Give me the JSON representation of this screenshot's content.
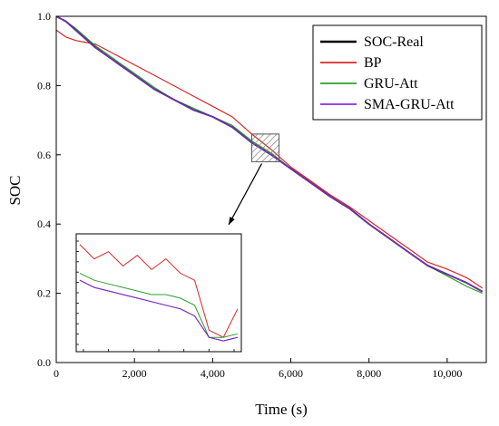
{
  "chart_data": {
    "type": "line",
    "title": "",
    "xlabel": "Time (s)",
    "ylabel": "SOC",
    "xlim": [
      0,
      11000
    ],
    "ylim": [
      0.0,
      1.0
    ],
    "x_ticks": [
      0,
      2000,
      4000,
      6000,
      8000,
      10000
    ],
    "x_tick_labels": [
      "0",
      "2,000",
      "4,000",
      "6,000",
      "8,000",
      "10,000"
    ],
    "y_ticks": [
      0.0,
      0.2,
      0.4,
      0.6,
      0.8,
      1.0
    ],
    "y_tick_labels": [
      "0.0",
      "0.2",
      "0.4",
      "0.6",
      "0.8",
      "1.0"
    ],
    "grid": false,
    "legend_position": "top-right",
    "x": [
      0,
      250,
      500,
      1000,
      1500,
      2000,
      2500,
      3000,
      3500,
      4000,
      4500,
      5000,
      5500,
      6000,
      6500,
      7000,
      7500,
      8000,
      8500,
      9000,
      9500,
      10000,
      10500,
      10900
    ],
    "series": [
      {
        "name": "SOC-Real",
        "color": "#000000",
        "values": [
          1.0,
          0.985,
          0.96,
          0.91,
          0.87,
          0.83,
          0.79,
          0.76,
          0.73,
          0.71,
          0.68,
          0.635,
          0.6,
          0.56,
          0.52,
          0.48,
          0.445,
          0.4,
          0.36,
          0.32,
          0.28,
          0.255,
          0.23,
          0.205
        ]
      },
      {
        "name": "BP",
        "color": "#d62728",
        "values": [
          0.96,
          0.94,
          0.93,
          0.92,
          0.89,
          0.86,
          0.83,
          0.8,
          0.77,
          0.74,
          0.71,
          0.66,
          0.615,
          0.565,
          0.525,
          0.485,
          0.45,
          0.41,
          0.37,
          0.33,
          0.29,
          0.27,
          0.245,
          0.215
        ]
      },
      {
        "name": "GRU-Att",
        "color": "#2ca02c",
        "values": [
          1.0,
          0.985,
          0.965,
          0.915,
          0.875,
          0.835,
          0.795,
          0.76,
          0.735,
          0.71,
          0.685,
          0.64,
          0.605,
          0.56,
          0.52,
          0.48,
          0.445,
          0.4,
          0.36,
          0.32,
          0.28,
          0.25,
          0.22,
          0.2
        ]
      },
      {
        "name": "SMA-GRU-Att",
        "color": "#8a2be2",
        "values": [
          1.0,
          0.985,
          0.96,
          0.91,
          0.87,
          0.83,
          0.79,
          0.76,
          0.73,
          0.71,
          0.68,
          0.635,
          0.6,
          0.56,
          0.52,
          0.48,
          0.445,
          0.4,
          0.36,
          0.32,
          0.28,
          0.255,
          0.23,
          0.205
        ]
      }
    ],
    "zoom_region": {
      "x": [
        5000,
        5700
      ],
      "y": [
        0.58,
        0.66
      ]
    },
    "inset": {
      "series": [
        {
          "name": "SOC-Real",
          "values": [
            0.68,
            0.67,
            0.665,
            0.66,
            0.655,
            0.65,
            0.645,
            0.64,
            0.63,
            0.6,
            0.595,
            0.6
          ]
        },
        {
          "name": "BP",
          "values": [
            0.73,
            0.71,
            0.72,
            0.7,
            0.715,
            0.695,
            0.71,
            0.69,
            0.68,
            0.61,
            0.6,
            0.64
          ]
        },
        {
          "name": "GRU-Att",
          "values": [
            0.69,
            0.68,
            0.675,
            0.67,
            0.665,
            0.66,
            0.66,
            0.655,
            0.645,
            0.6,
            0.6,
            0.605
          ]
        },
        {
          "name": "SMA-GRU-Att",
          "values": [
            0.68,
            0.67,
            0.665,
            0.66,
            0.655,
            0.65,
            0.645,
            0.64,
            0.63,
            0.6,
            0.595,
            0.6
          ]
        }
      ]
    }
  }
}
